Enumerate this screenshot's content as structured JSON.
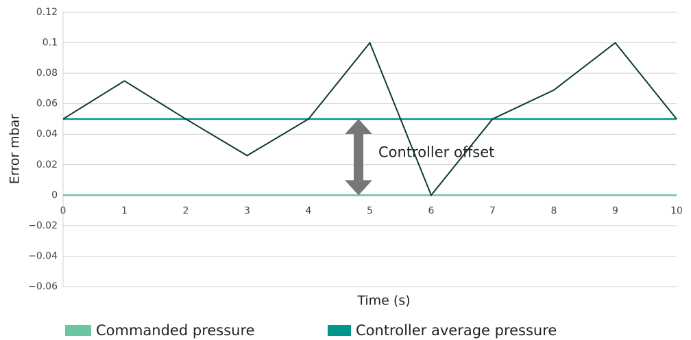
{
  "chart_data": {
    "type": "line",
    "x_label": "Time (s)",
    "y_label": "Error mbar",
    "x": [
      0,
      1,
      2,
      3,
      4,
      5,
      6,
      7,
      8,
      9,
      10
    ],
    "series": [
      {
        "color": "#0d3b2e",
        "values": [
          0.05,
          0.075,
          0.05,
          0.026,
          0.05,
          0.1,
          0,
          0.05,
          0.069,
          0.1,
          0.05
        ]
      },
      {
        "name": "Commanded pressure",
        "color": "#6cc4a0",
        "values": [
          0,
          0,
          0,
          0,
          0,
          0,
          0,
          0,
          0,
          0,
          0
        ]
      },
      {
        "name": "Controller average pressure",
        "color": "#00968a",
        "values": [
          0.05,
          0.05,
          0.05,
          0.05,
          0.05,
          0.05,
          0.05,
          0.05,
          0.05,
          0.05,
          0.05
        ]
      }
    ],
    "annotation": "Controller offset",
    "xlim": [
      0,
      10
    ],
    "xticks": [
      0,
      1,
      2,
      3,
      4,
      5,
      6,
      7,
      8,
      9,
      10
    ],
    "ylim": [
      -0.06,
      0.12
    ],
    "yticks": [
      {
        "value": -0.06,
        "label": "−0.06"
      },
      {
        "value": -0.04,
        "label": "−0.04"
      },
      {
        "value": -0.02,
        "label": "−0.02"
      },
      0,
      0.02,
      0.04,
      0.06,
      0.08,
      0.1,
      0.12
    ],
    "grid": true,
    "legend": "bottom"
  }
}
